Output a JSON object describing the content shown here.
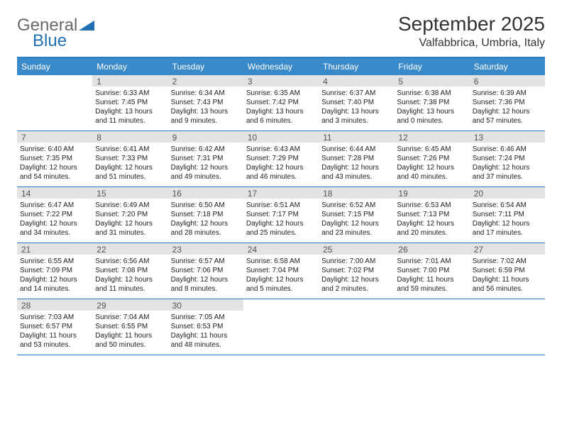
{
  "logo": {
    "word1": "General",
    "word2": "Blue"
  },
  "title": "September 2025",
  "location": "Valfabbrica, Umbria, Italy",
  "colors": {
    "header_bar": "#3a8ac9",
    "header_border": "#2d7bc0",
    "daynum_bg": "#e3e3e3",
    "text": "#333333",
    "logo_gray": "#6a6a6a",
    "logo_blue": "#1f6fb2"
  },
  "weekdays": [
    "Sunday",
    "Monday",
    "Tuesday",
    "Wednesday",
    "Thursday",
    "Friday",
    "Saturday"
  ],
  "weeks": [
    [
      null,
      {
        "n": "1",
        "sr": "Sunrise: 6:33 AM",
        "ss": "Sunset: 7:45 PM",
        "dl": "Daylight: 13 hours and 11 minutes."
      },
      {
        "n": "2",
        "sr": "Sunrise: 6:34 AM",
        "ss": "Sunset: 7:43 PM",
        "dl": "Daylight: 13 hours and 9 minutes."
      },
      {
        "n": "3",
        "sr": "Sunrise: 6:35 AM",
        "ss": "Sunset: 7:42 PM",
        "dl": "Daylight: 13 hours and 6 minutes."
      },
      {
        "n": "4",
        "sr": "Sunrise: 6:37 AM",
        "ss": "Sunset: 7:40 PM",
        "dl": "Daylight: 13 hours and 3 minutes."
      },
      {
        "n": "5",
        "sr": "Sunrise: 6:38 AM",
        "ss": "Sunset: 7:38 PM",
        "dl": "Daylight: 13 hours and 0 minutes."
      },
      {
        "n": "6",
        "sr": "Sunrise: 6:39 AM",
        "ss": "Sunset: 7:36 PM",
        "dl": "Daylight: 12 hours and 57 minutes."
      }
    ],
    [
      {
        "n": "7",
        "sr": "Sunrise: 6:40 AM",
        "ss": "Sunset: 7:35 PM",
        "dl": "Daylight: 12 hours and 54 minutes."
      },
      {
        "n": "8",
        "sr": "Sunrise: 6:41 AM",
        "ss": "Sunset: 7:33 PM",
        "dl": "Daylight: 12 hours and 51 minutes."
      },
      {
        "n": "9",
        "sr": "Sunrise: 6:42 AM",
        "ss": "Sunset: 7:31 PM",
        "dl": "Daylight: 12 hours and 49 minutes."
      },
      {
        "n": "10",
        "sr": "Sunrise: 6:43 AM",
        "ss": "Sunset: 7:29 PM",
        "dl": "Daylight: 12 hours and 46 minutes."
      },
      {
        "n": "11",
        "sr": "Sunrise: 6:44 AM",
        "ss": "Sunset: 7:28 PM",
        "dl": "Daylight: 12 hours and 43 minutes."
      },
      {
        "n": "12",
        "sr": "Sunrise: 6:45 AM",
        "ss": "Sunset: 7:26 PM",
        "dl": "Daylight: 12 hours and 40 minutes."
      },
      {
        "n": "13",
        "sr": "Sunrise: 6:46 AM",
        "ss": "Sunset: 7:24 PM",
        "dl": "Daylight: 12 hours and 37 minutes."
      }
    ],
    [
      {
        "n": "14",
        "sr": "Sunrise: 6:47 AM",
        "ss": "Sunset: 7:22 PM",
        "dl": "Daylight: 12 hours and 34 minutes."
      },
      {
        "n": "15",
        "sr": "Sunrise: 6:49 AM",
        "ss": "Sunset: 7:20 PM",
        "dl": "Daylight: 12 hours and 31 minutes."
      },
      {
        "n": "16",
        "sr": "Sunrise: 6:50 AM",
        "ss": "Sunset: 7:18 PM",
        "dl": "Daylight: 12 hours and 28 minutes."
      },
      {
        "n": "17",
        "sr": "Sunrise: 6:51 AM",
        "ss": "Sunset: 7:17 PM",
        "dl": "Daylight: 12 hours and 25 minutes."
      },
      {
        "n": "18",
        "sr": "Sunrise: 6:52 AM",
        "ss": "Sunset: 7:15 PM",
        "dl": "Daylight: 12 hours and 23 minutes."
      },
      {
        "n": "19",
        "sr": "Sunrise: 6:53 AM",
        "ss": "Sunset: 7:13 PM",
        "dl": "Daylight: 12 hours and 20 minutes."
      },
      {
        "n": "20",
        "sr": "Sunrise: 6:54 AM",
        "ss": "Sunset: 7:11 PM",
        "dl": "Daylight: 12 hours and 17 minutes."
      }
    ],
    [
      {
        "n": "21",
        "sr": "Sunrise: 6:55 AM",
        "ss": "Sunset: 7:09 PM",
        "dl": "Daylight: 12 hours and 14 minutes."
      },
      {
        "n": "22",
        "sr": "Sunrise: 6:56 AM",
        "ss": "Sunset: 7:08 PM",
        "dl": "Daylight: 12 hours and 11 minutes."
      },
      {
        "n": "23",
        "sr": "Sunrise: 6:57 AM",
        "ss": "Sunset: 7:06 PM",
        "dl": "Daylight: 12 hours and 8 minutes."
      },
      {
        "n": "24",
        "sr": "Sunrise: 6:58 AM",
        "ss": "Sunset: 7:04 PM",
        "dl": "Daylight: 12 hours and 5 minutes."
      },
      {
        "n": "25",
        "sr": "Sunrise: 7:00 AM",
        "ss": "Sunset: 7:02 PM",
        "dl": "Daylight: 12 hours and 2 minutes."
      },
      {
        "n": "26",
        "sr": "Sunrise: 7:01 AM",
        "ss": "Sunset: 7:00 PM",
        "dl": "Daylight: 11 hours and 59 minutes."
      },
      {
        "n": "27",
        "sr": "Sunrise: 7:02 AM",
        "ss": "Sunset: 6:59 PM",
        "dl": "Daylight: 11 hours and 56 minutes."
      }
    ],
    [
      {
        "n": "28",
        "sr": "Sunrise: 7:03 AM",
        "ss": "Sunset: 6:57 PM",
        "dl": "Daylight: 11 hours and 53 minutes."
      },
      {
        "n": "29",
        "sr": "Sunrise: 7:04 AM",
        "ss": "Sunset: 6:55 PM",
        "dl": "Daylight: 11 hours and 50 minutes."
      },
      {
        "n": "30",
        "sr": "Sunrise: 7:05 AM",
        "ss": "Sunset: 6:53 PM",
        "dl": "Daylight: 11 hours and 48 minutes."
      },
      null,
      null,
      null,
      null
    ]
  ]
}
